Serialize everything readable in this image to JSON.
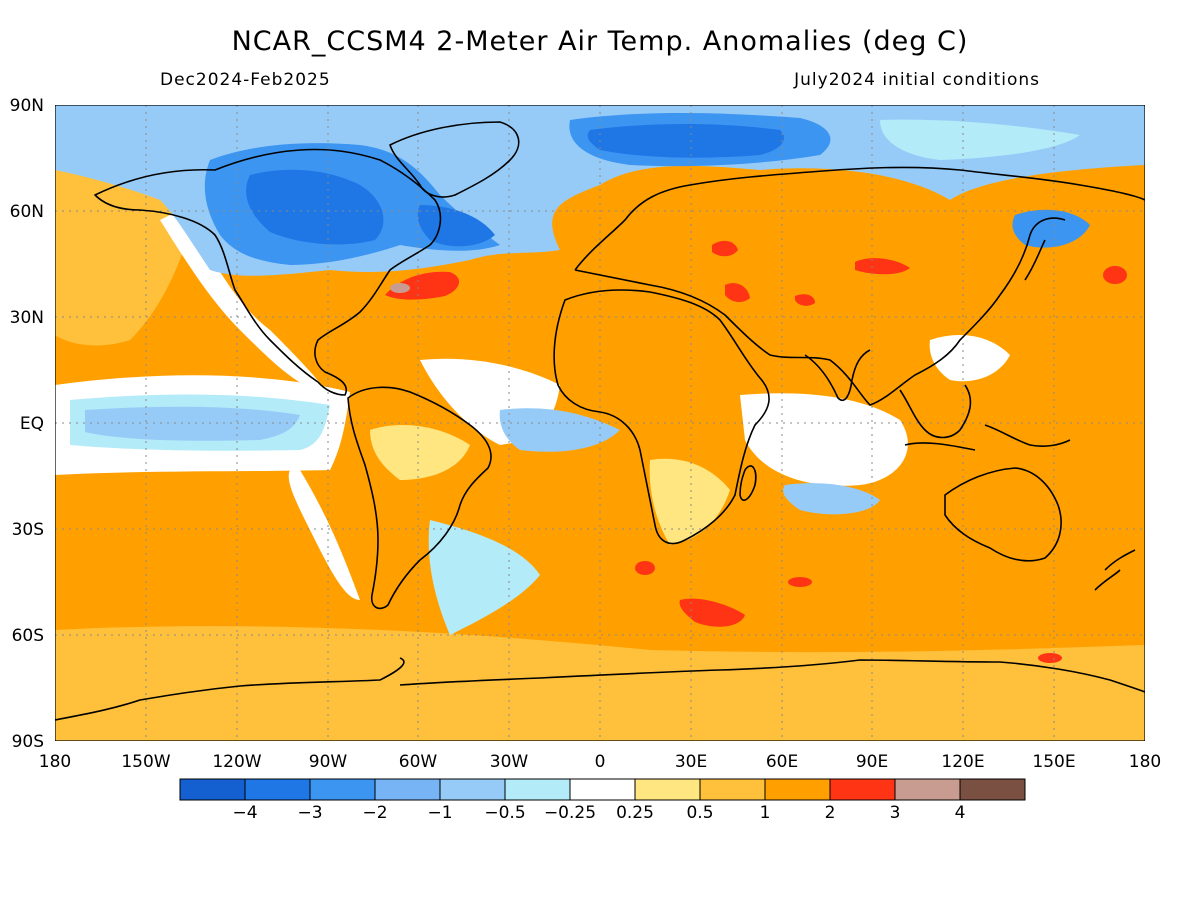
{
  "header": {
    "title": "NCAR_CCSM4 2-Meter Air Temp. Anomalies (deg C)",
    "period": "Dec2024-Feb2025",
    "init": "July2024 initial conditions"
  },
  "map": {
    "lat_labels": [
      "90N",
      "60N",
      "30N",
      "EQ",
      "30S",
      "60S",
      "90S"
    ],
    "lon_labels": [
      "180",
      "150W",
      "120W",
      "90W",
      "60W",
      "30W",
      "0",
      "30E",
      "60E",
      "90E",
      "120E",
      "150E",
      "180"
    ]
  },
  "colorbar": {
    "colors": [
      "#1560d0",
      "#1f77e6",
      "#3d95f2",
      "#76b4f6",
      "#97cbf7",
      "#b3ebf8",
      "#ffffff",
      "#ffe680",
      "#ffc03c",
      "#ffa000",
      "#ff3414",
      "#c89c90",
      "#7a5042"
    ],
    "labels": [
      "-4",
      "-3",
      "-2",
      "-1",
      "-0.5",
      "-0.25",
      "0.25",
      "0.5",
      "1",
      "2",
      "3",
      "4"
    ]
  },
  "palette": {
    "ocean_warm": "#ffa000",
    "land_warm": "#ffc03c",
    "light_warm": "#ffe680",
    "neutral": "#ffffff",
    "cool": "#97cbf7",
    "cold": "#3d95f2",
    "very_cold": "#1f77e6",
    "hot": "#ff3414",
    "coastline": "#000000"
  }
}
